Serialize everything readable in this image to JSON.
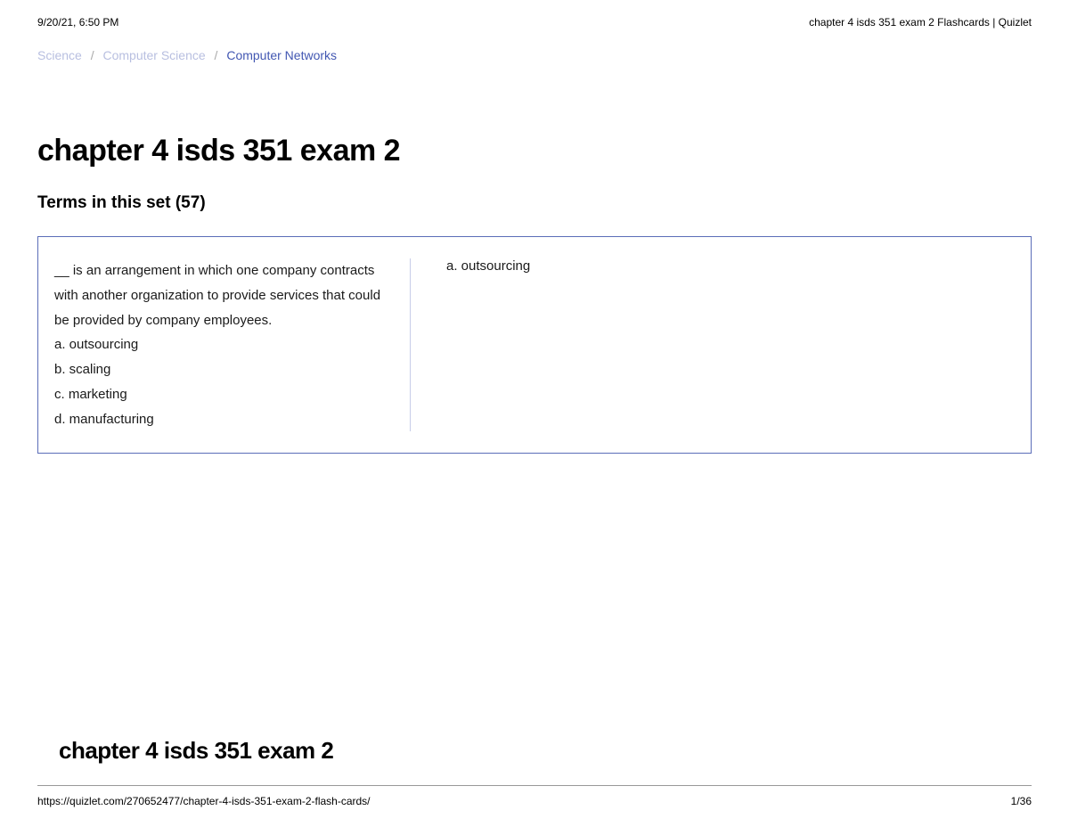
{
  "print_header": {
    "timestamp": "9/20/21, 6:50 PM",
    "doc_title": "chapter 4 isds 351 exam 2 Flashcards | Quizlet"
  },
  "breadcrumb": {
    "item1": "Science",
    "item2": "Computer Science",
    "item3": "Computer Networks"
  },
  "page": {
    "title": "chapter 4 isds 351 exam 2",
    "subtitle": "Terms in this set (57)"
  },
  "card": {
    "term": "__ is an arrangement in which one company contracts with another organization to provide services that could be provided by company employees.\na. outsourcing\nb. scaling\nc. marketing\nd. manufacturing",
    "definition": "a. outsourcing"
  },
  "footer": {
    "title": "chapter 4 isds 351 exam 2",
    "url": "https://quizlet.com/270652477/chapter-4-isds-351-exam-2-flash-cards/",
    "page_num": "1/36"
  },
  "colors": {
    "link": "#4257b2",
    "card_border": "#5b6db8",
    "divider": "#c7cde8"
  }
}
